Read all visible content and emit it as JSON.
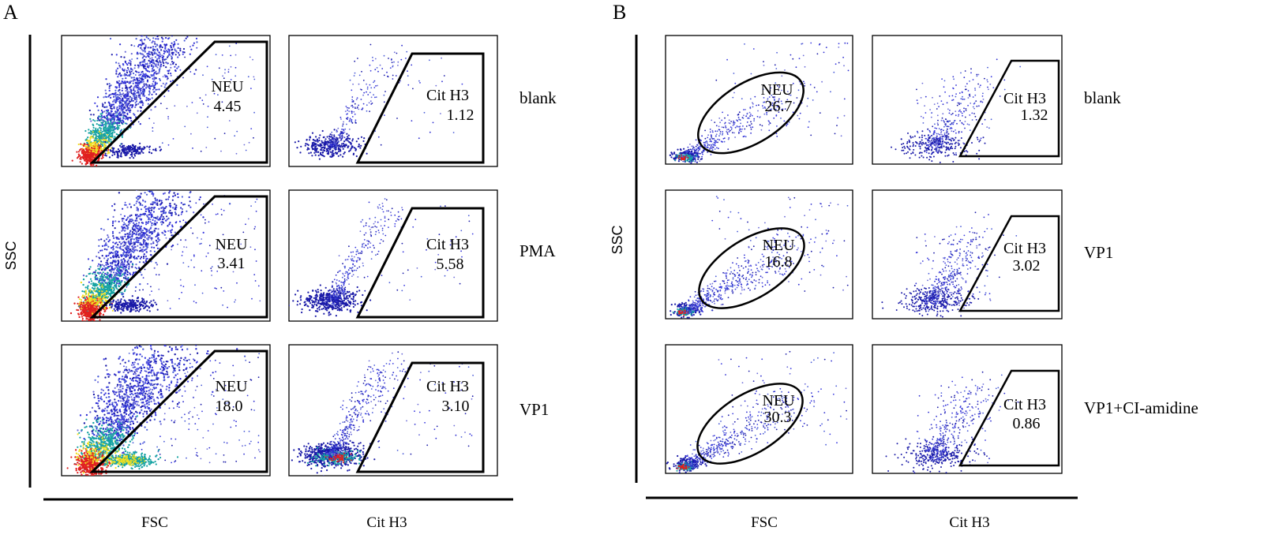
{
  "colors": {
    "frame": "#000000",
    "density_low": "#1a1aa8",
    "density_mid": "#17a3a3",
    "density_high": "#f0e020",
    "density_peak": "#e02020"
  },
  "chart_data": [
    {
      "type": "scatter",
      "panel_label": "A",
      "y_axis_label": "SSC",
      "x_axis_labels": [
        "FSC",
        "Cit H3"
      ],
      "gate_shape_left": "trapezoid",
      "gate_shape_right": "trapezoid",
      "rows": [
        {
          "condition": "blank",
          "neu_label": "NEU",
          "neu_value": "4.45",
          "cit_label": "Cit H3",
          "cit_value": "1.12",
          "density": 0.45,
          "secondary_cluster": 0.3
        },
        {
          "condition": "PMA",
          "neu_label": "NEU",
          "neu_value": "3.41",
          "cit_label": "Cit H3",
          "cit_value": "5.58",
          "density": 0.7,
          "secondary_cluster": 0.45
        },
        {
          "condition": "VP1",
          "neu_label": "NEU",
          "neu_value": "18.0",
          "cit_label": "Cit H3",
          "cit_value": "3.10",
          "density": 1.0,
          "secondary_cluster": 1.0
        }
      ]
    },
    {
      "type": "scatter",
      "panel_label": "B",
      "y_axis_label": "SSC",
      "x_axis_labels": [
        "FSC",
        "Cit H3"
      ],
      "gate_shape_left": "ellipse",
      "gate_shape_right": "trapezoid",
      "rows": [
        {
          "condition": "blank",
          "neu_label": "NEU",
          "neu_value": "26.7",
          "cit_label": "Cit H3",
          "cit_value": "1.32",
          "density": 0.35,
          "secondary_cluster": 0.3
        },
        {
          "condition": "VP1",
          "neu_label": "NEU",
          "neu_value": "16.8",
          "cit_label": "Cit H3",
          "cit_value": "3.02",
          "density": 0.55,
          "secondary_cluster": 0.5
        },
        {
          "condition": "VP1+CI-amidine",
          "neu_label": "NEU",
          "neu_value": "30.3",
          "cit_label": "Cit H3",
          "cit_value": "0.86",
          "density": 0.45,
          "secondary_cluster": 0.45
        }
      ]
    }
  ]
}
